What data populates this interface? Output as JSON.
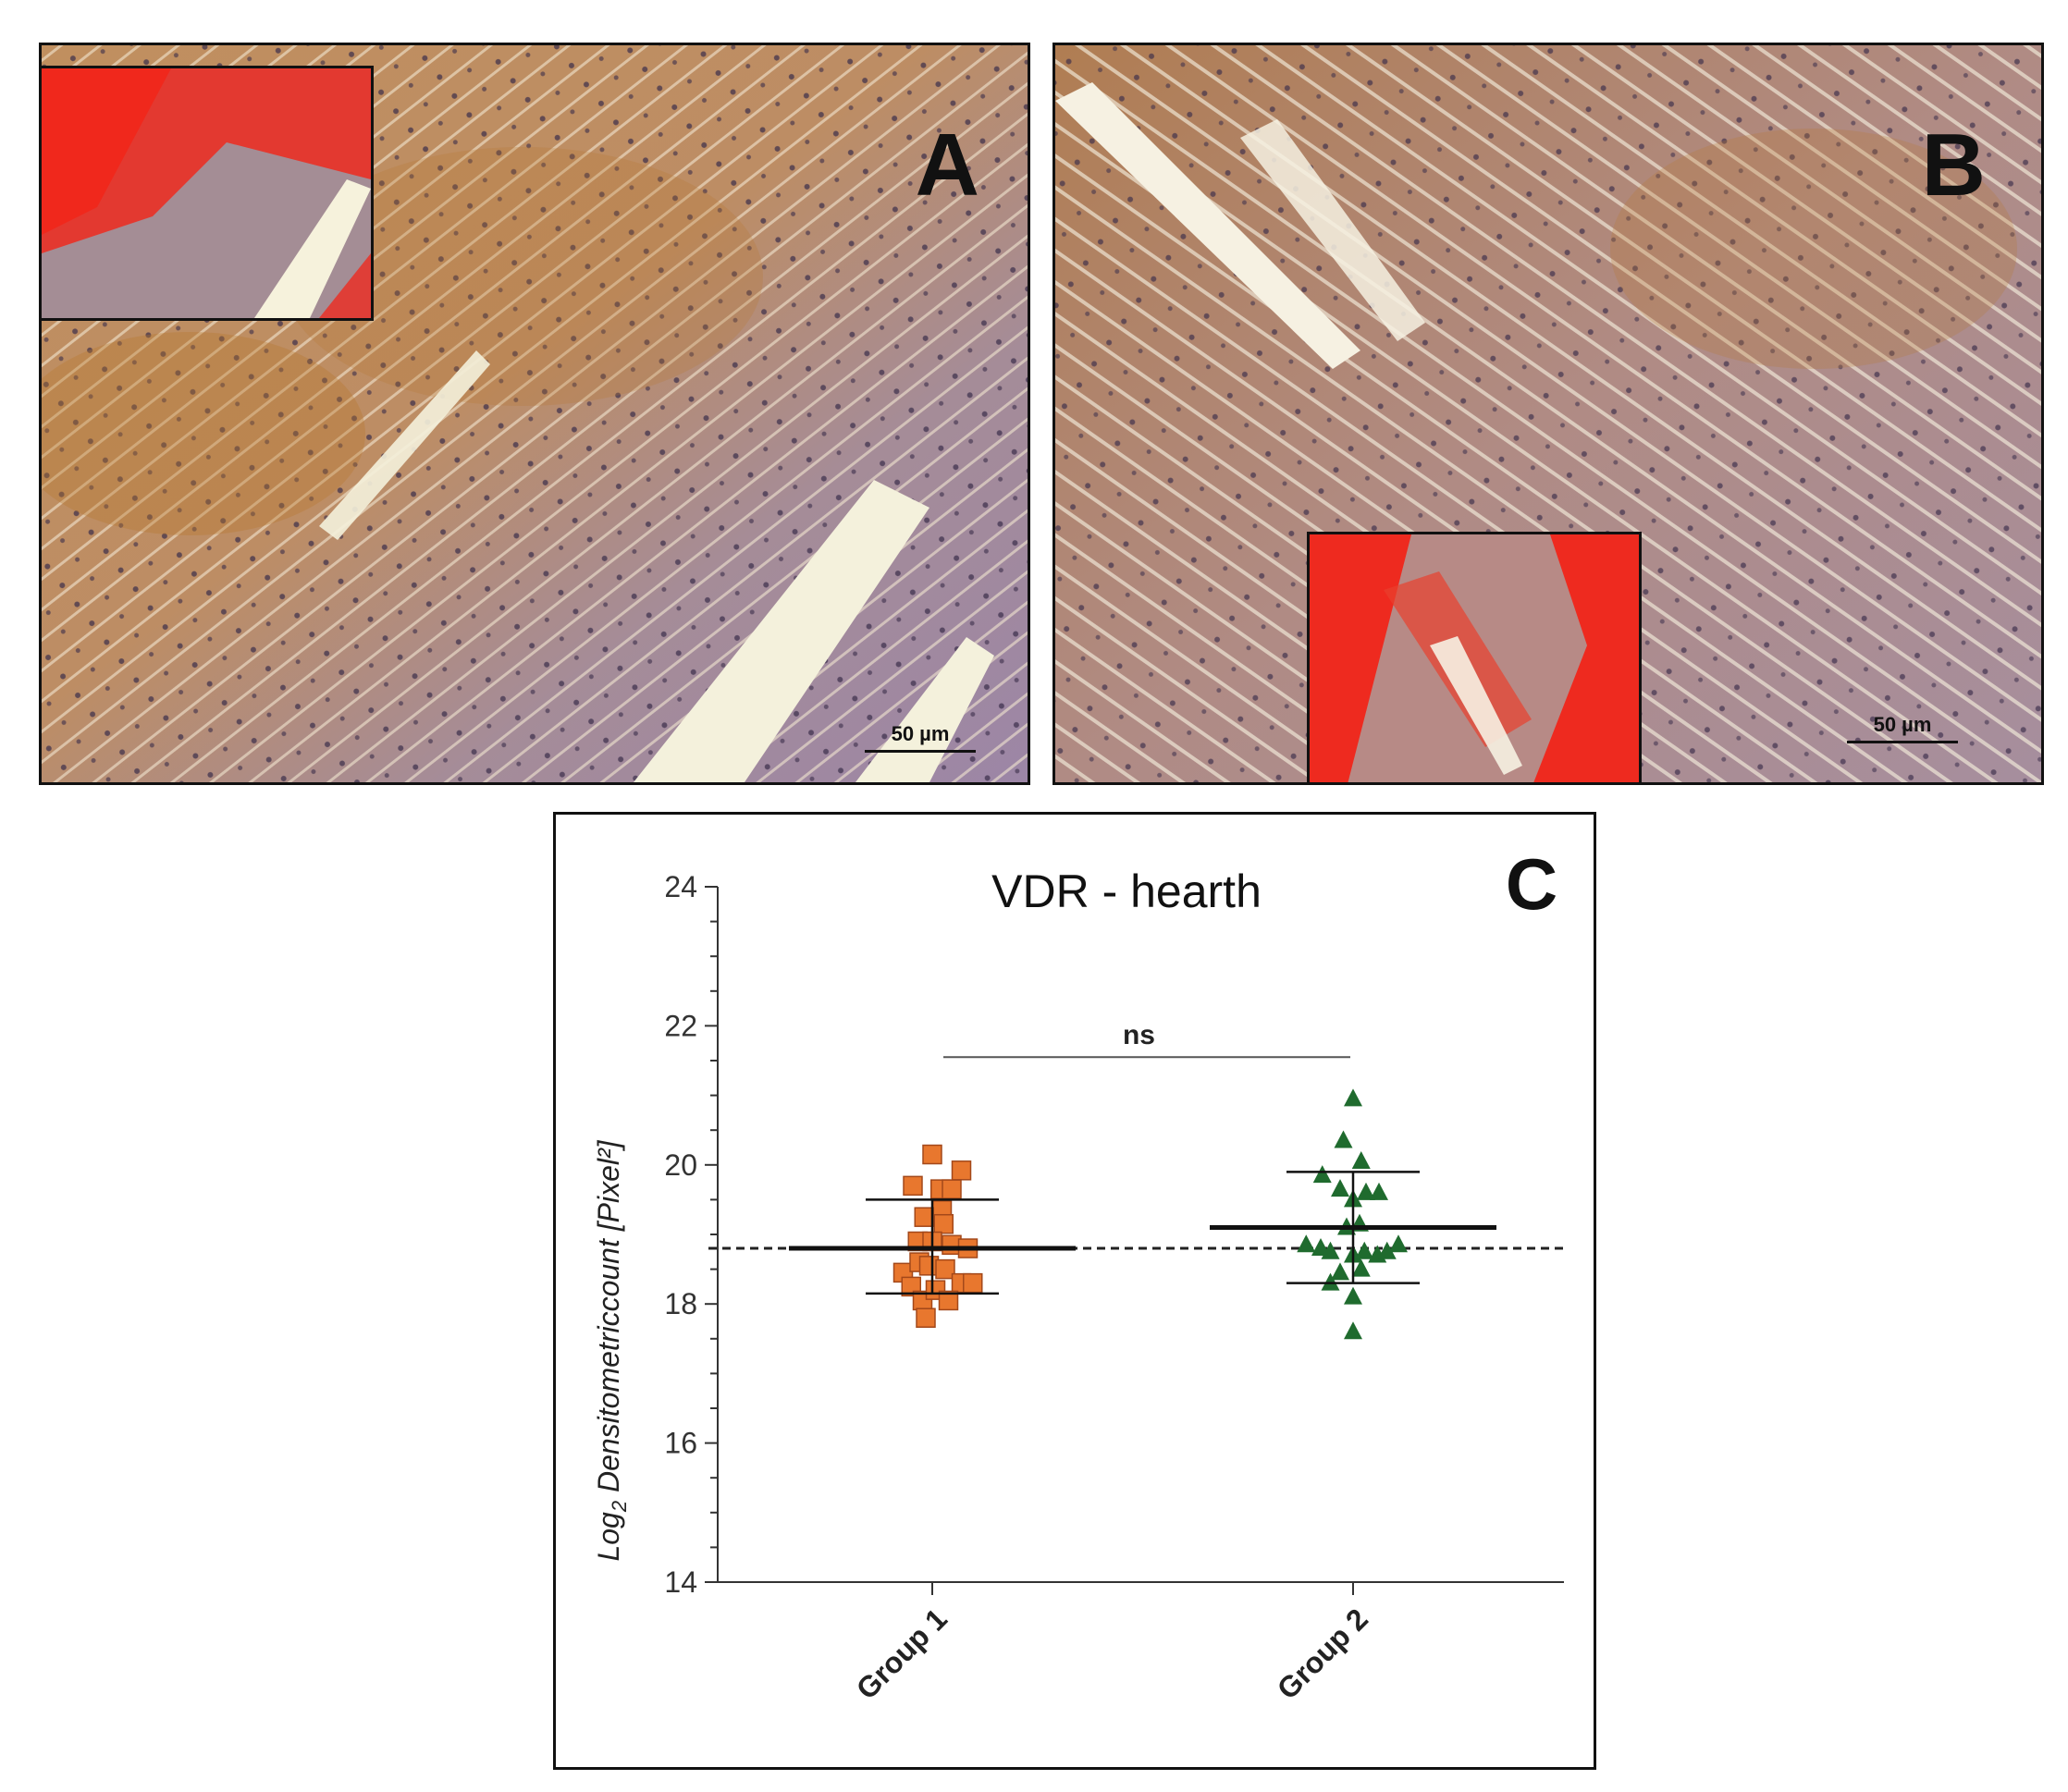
{
  "panel_a": {
    "letter": "A",
    "scalebar_label": "50 µm",
    "colors": {
      "tissue": "#b98d6e",
      "stain_brown": "#b47a3c",
      "purple": "#9f8aa8",
      "inset_red": "#ee2a1f"
    }
  },
  "panel_b": {
    "letter": "B",
    "scalebar_label": "50 µm",
    "colors": {
      "tissue": "#b08a78",
      "stain_brown": "#a8754a",
      "purple": "#a493a8",
      "inset_red": "#ee2a1f"
    }
  },
  "panel_c": {
    "letter": "C",
    "significance_label": "ns",
    "chart_data": {
      "type": "scatter",
      "title": "VDR - hearth",
      "ylabel_base": "Log",
      "ylabel_sub": "2",
      "ylabel_rest": " Densitometriccount [Pixel²]",
      "ylim": [
        14,
        24
      ],
      "yticks": [
        14,
        16,
        18,
        20,
        22,
        24
      ],
      "categories": [
        "Group 1",
        "Group 2"
      ],
      "reference_line": 18.8,
      "series": [
        {
          "marker": "square",
          "color": "#e8772e",
          "mean": 18.8,
          "sd_low": 18.15,
          "sd_high": 19.5,
          "points": [
            {
              "dx": -0.18,
              "y": 18.45
            },
            {
              "dx": -0.13,
              "y": 18.25
            },
            {
              "dx": -0.08,
              "y": 18.6
            },
            {
              "dx": -0.06,
              "y": 18.05
            },
            {
              "dx": -0.12,
              "y": 19.7
            },
            {
              "dx": 0.0,
              "y": 20.15
            },
            {
              "dx": 0.05,
              "y": 19.65
            },
            {
              "dx": 0.12,
              "y": 19.65
            },
            {
              "dx": 0.18,
              "y": 19.92
            },
            {
              "dx": 0.06,
              "y": 19.35
            },
            {
              "dx": -0.05,
              "y": 19.25
            },
            {
              "dx": 0.07,
              "y": 19.15
            },
            {
              "dx": -0.09,
              "y": 18.9
            },
            {
              "dx": 0.0,
              "y": 18.9
            },
            {
              "dx": 0.12,
              "y": 18.85
            },
            {
              "dx": 0.22,
              "y": 18.8
            },
            {
              "dx": -0.02,
              "y": 18.55
            },
            {
              "dx": 0.08,
              "y": 18.5
            },
            {
              "dx": 0.18,
              "y": 18.3
            },
            {
              "dx": 0.25,
              "y": 18.3
            },
            {
              "dx": 0.02,
              "y": 18.2
            },
            {
              "dx": 0.1,
              "y": 18.05
            },
            {
              "dx": -0.04,
              "y": 17.8
            }
          ]
        },
        {
          "marker": "triangle",
          "color": "#1f6b2e",
          "mean": 19.1,
          "sd_low": 18.3,
          "sd_high": 19.9,
          "points": [
            {
              "dx": 0.0,
              "y": 20.95
            },
            {
              "dx": -0.06,
              "y": 20.35
            },
            {
              "dx": 0.05,
              "y": 20.05
            },
            {
              "dx": -0.19,
              "y": 19.85
            },
            {
              "dx": -0.08,
              "y": 19.65
            },
            {
              "dx": 0.0,
              "y": 19.5
            },
            {
              "dx": 0.08,
              "y": 19.6
            },
            {
              "dx": 0.16,
              "y": 19.6
            },
            {
              "dx": -0.04,
              "y": 19.1
            },
            {
              "dx": 0.04,
              "y": 19.15
            },
            {
              "dx": -0.29,
              "y": 18.85
            },
            {
              "dx": -0.2,
              "y": 18.8
            },
            {
              "dx": -0.14,
              "y": 18.75
            },
            {
              "dx": 0.0,
              "y": 18.7
            },
            {
              "dx": 0.07,
              "y": 18.75
            },
            {
              "dx": 0.15,
              "y": 18.7
            },
            {
              "dx": 0.21,
              "y": 18.75
            },
            {
              "dx": 0.28,
              "y": 18.85
            },
            {
              "dx": -0.08,
              "y": 18.45
            },
            {
              "dx": 0.05,
              "y": 18.5
            },
            {
              "dx": -0.14,
              "y": 18.3
            },
            {
              "dx": 0.0,
              "y": 18.1
            },
            {
              "dx": 0.0,
              "y": 17.6
            }
          ]
        }
      ],
      "significance": {
        "label": "ns",
        "y": 21.55
      }
    }
  }
}
